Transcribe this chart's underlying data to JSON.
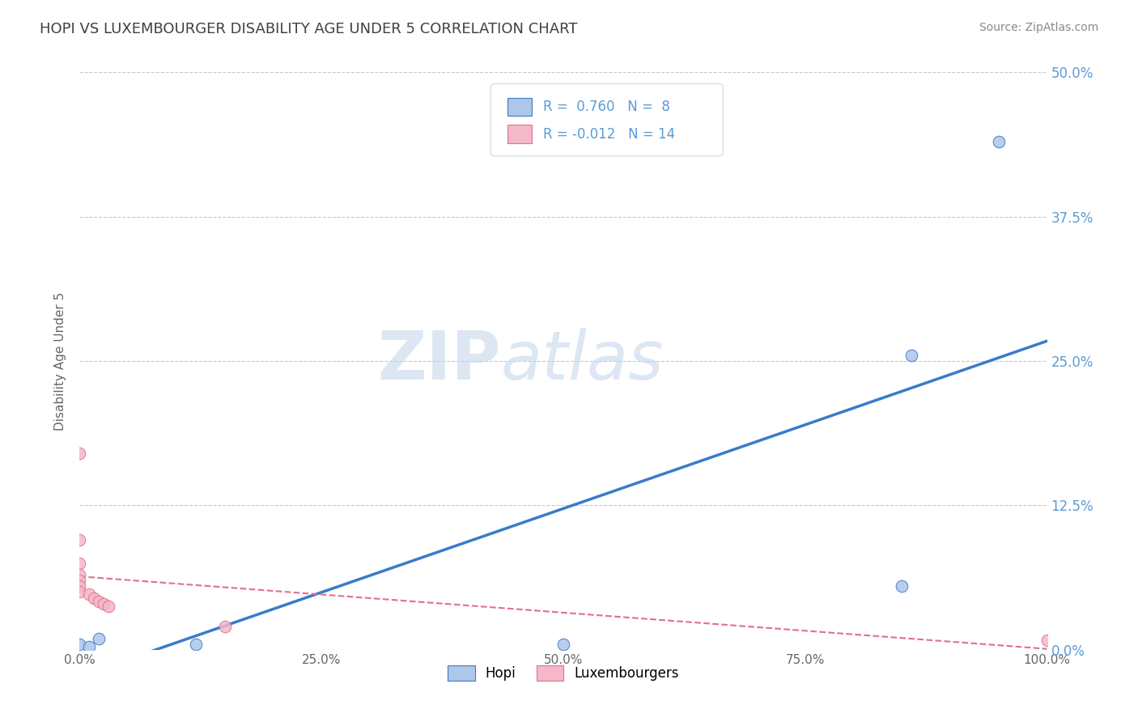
{
  "title": "HOPI VS LUXEMBOURGER DISABILITY AGE UNDER 5 CORRELATION CHART",
  "source": "Source: ZipAtlas.com",
  "ylabel": "Disability Age Under 5",
  "hopi_R": 0.76,
  "hopi_N": 8,
  "hopi_color": "#aec6e8",
  "hopi_line_color": "#3a7bc8",
  "lux_R": -0.012,
  "lux_N": 14,
  "lux_color": "#f4b8c8",
  "lux_line_color": "#e07090",
  "hopi_x": [
    0.0,
    0.01,
    0.02,
    0.12,
    0.5,
    0.85,
    0.86,
    0.95
  ],
  "hopi_y": [
    0.005,
    0.003,
    0.01,
    0.005,
    0.005,
    0.055,
    0.255,
    0.44
  ],
  "lux_x": [
    0.0,
    0.0,
    0.0,
    0.0,
    0.0,
    0.0,
    0.0,
    0.01,
    0.015,
    0.02,
    0.025,
    0.03,
    0.15,
    1.0
  ],
  "lux_y": [
    0.17,
    0.095,
    0.075,
    0.065,
    0.06,
    0.055,
    0.05,
    0.048,
    0.045,
    0.042,
    0.04,
    0.038,
    0.02,
    0.008
  ],
  "xlim": [
    0.0,
    1.0
  ],
  "ylim": [
    0.0,
    0.5
  ],
  "yticks": [
    0.0,
    0.125,
    0.25,
    0.375,
    0.5
  ],
  "ytick_labels": [
    "0.0%",
    "12.5%",
    "25.0%",
    "37.5%",
    "50.0%"
  ],
  "xticks": [
    0.0,
    0.25,
    0.5,
    0.75,
    1.0
  ],
  "xtick_labels": [
    "0.0%",
    "25.0%",
    "50.0%",
    "75.0%",
    "100.0%"
  ],
  "background_color": "#ffffff",
  "grid_color": "#c8c8c8",
  "yaxis_color": "#5b9bd5",
  "title_color": "#404040",
  "source_color": "#888888"
}
